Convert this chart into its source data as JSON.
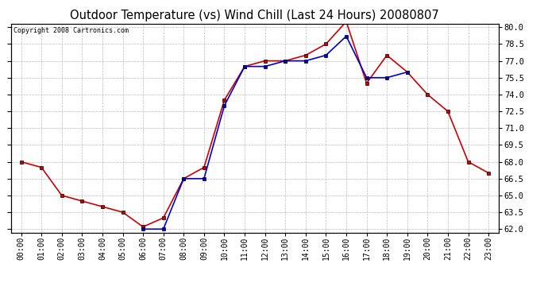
{
  "title": "Outdoor Temperature (vs) Wind Chill (Last 24 Hours) 20080807",
  "copyright_text": "Copyright 2008 Cartronics.com",
  "hours": [
    "00:00",
    "01:00",
    "02:00",
    "03:00",
    "04:00",
    "05:00",
    "06:00",
    "07:00",
    "08:00",
    "09:00",
    "10:00",
    "11:00",
    "12:00",
    "13:00",
    "14:00",
    "15:00",
    "16:00",
    "17:00",
    "18:00",
    "19:00",
    "20:00",
    "21:00",
    "22:00",
    "23:00"
  ],
  "temp": [
    68.0,
    67.5,
    65.0,
    64.5,
    64.0,
    63.5,
    62.2,
    63.0,
    66.5,
    67.5,
    73.5,
    76.5,
    77.0,
    77.0,
    77.5,
    78.5,
    80.5,
    75.0,
    77.5,
    76.0,
    74.0,
    72.5,
    68.0,
    67.0
  ],
  "wind_chill": [
    null,
    null,
    null,
    null,
    null,
    null,
    62.0,
    62.0,
    66.5,
    66.5,
    73.0,
    76.5,
    76.5,
    77.0,
    77.0,
    77.5,
    79.2,
    75.5,
    75.5,
    76.0,
    null,
    null,
    null,
    null
  ],
  "temp_color": "#cc0000",
  "wind_chill_color": "#0000cc",
  "ylim_min": 62.0,
  "ylim_max": 80.0,
  "ytick_step": 1.5,
  "background_color": "#ffffff",
  "plot_bg_color": "#ffffff",
  "grid_color": "#bbbbbb",
  "title_fontsize": 10.5,
  "marker": "s",
  "marker_size": 3,
  "linewidth": 1.2
}
